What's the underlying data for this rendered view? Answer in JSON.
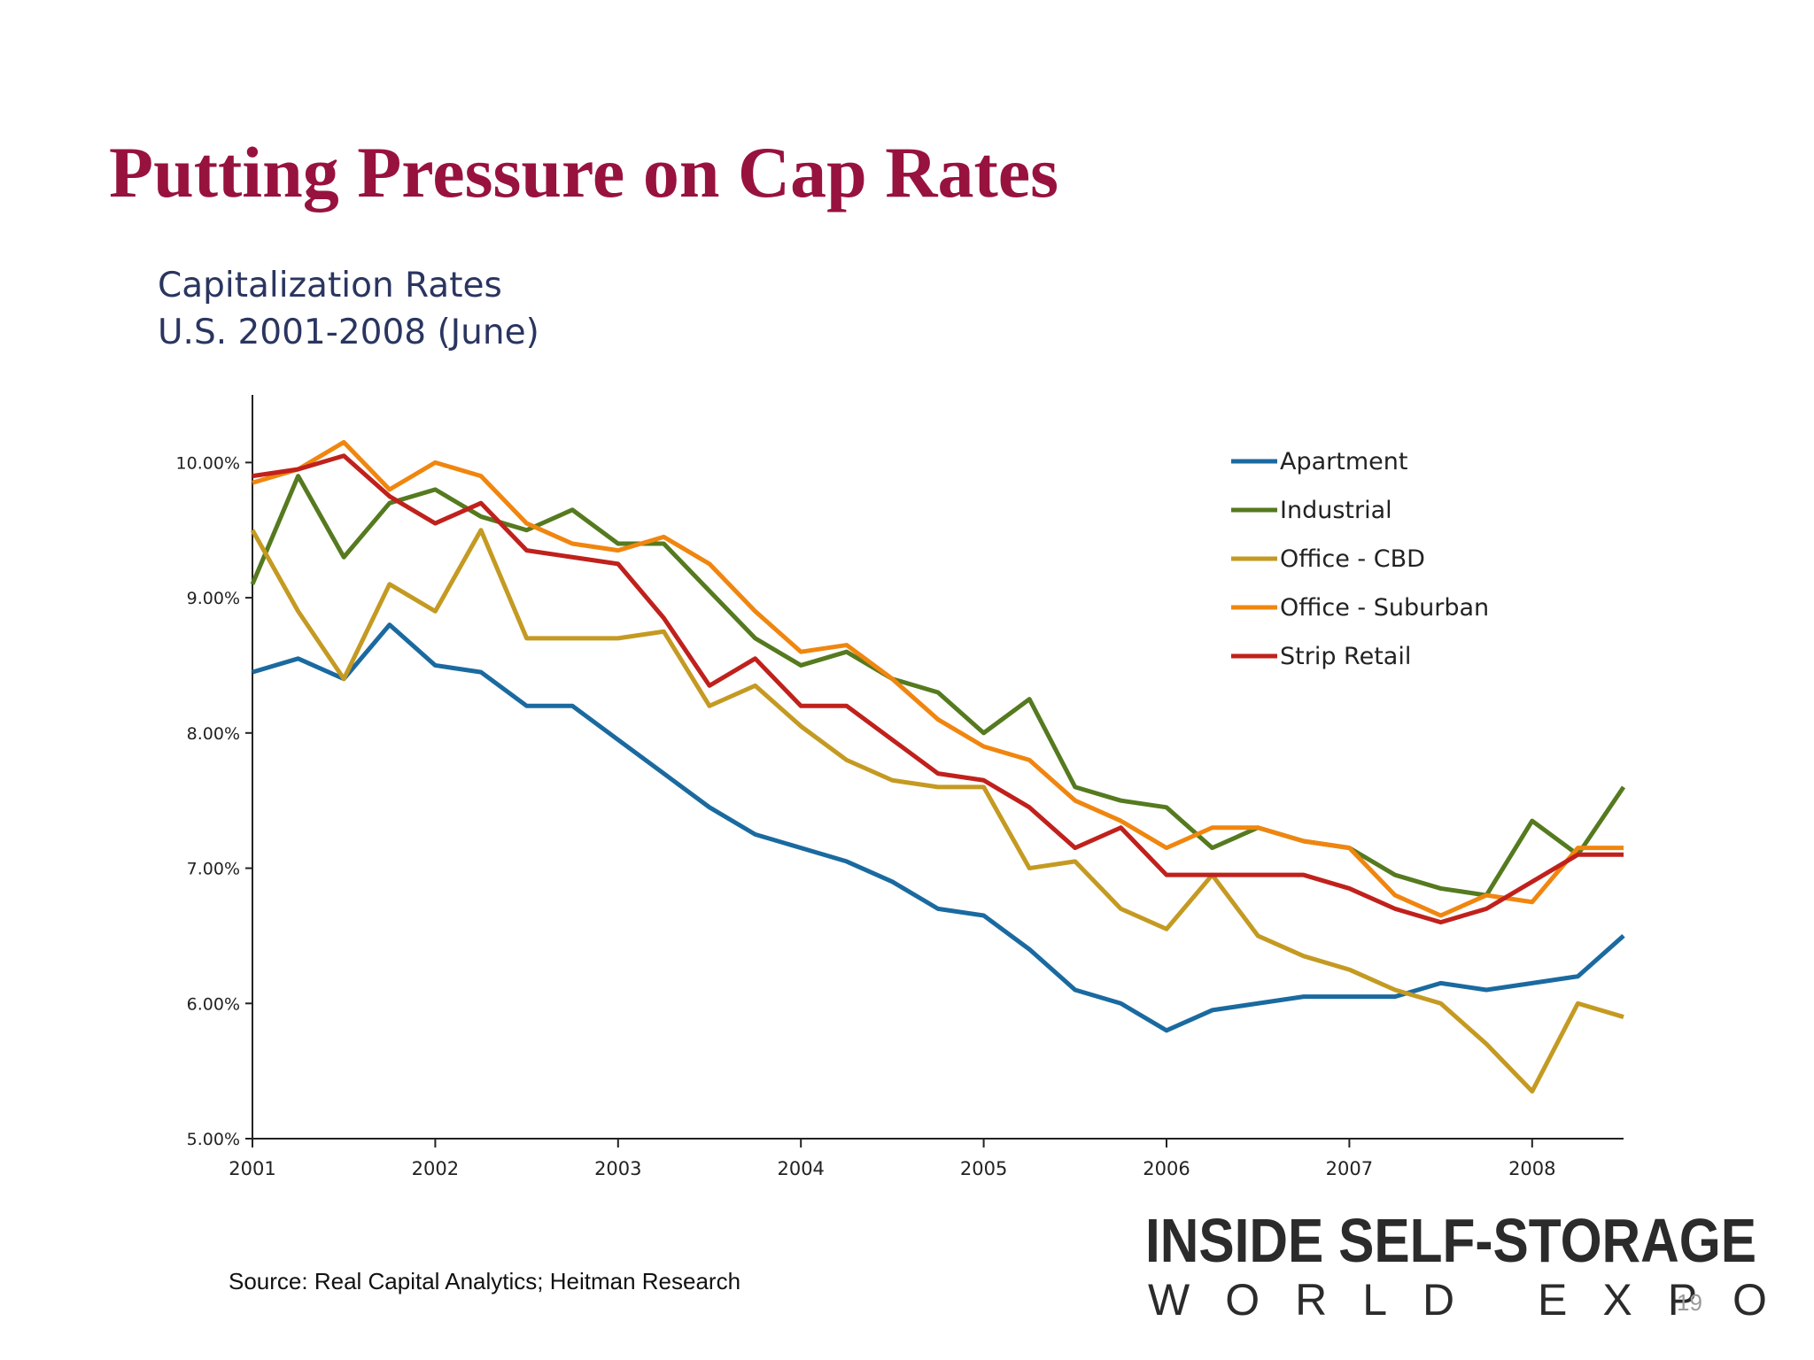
{
  "slide": {
    "title": "Putting Pressure on Cap Rates",
    "source": "Source: Real Capital Analytics; Heitman Research",
    "logo_top": "INSIDE SELF-STORAGE",
    "logo_bottom": "WORLD EXPO",
    "page_number": "19"
  },
  "chart_data": {
    "type": "line",
    "title": "Capitalization Rates",
    "subtitle": "U.S.  2001-2008 (June)",
    "x": [
      2001,
      2001.25,
      2001.5,
      2001.75,
      2002,
      2002.25,
      2002.5,
      2002.75,
      2003,
      2003.25,
      2003.5,
      2003.75,
      2004,
      2004.25,
      2004.5,
      2004.75,
      2005,
      2005.25,
      2005.5,
      2005.75,
      2006,
      2006.25,
      2006.5,
      2006.75,
      2007,
      2007.25,
      2007.5,
      2007.75,
      2008,
      2008.25,
      2008.5
    ],
    "series": [
      {
        "name": "Apartment",
        "color": "#1a6aa0",
        "values": [
          8.45,
          8.55,
          8.4,
          8.8,
          8.5,
          8.45,
          8.2,
          8.2,
          7.95,
          7.7,
          7.45,
          7.25,
          7.15,
          7.05,
          6.9,
          6.7,
          6.65,
          6.4,
          6.1,
          6.0,
          5.8,
          5.95,
          6.0,
          6.05,
          6.05,
          6.05,
          6.15,
          6.1,
          6.15,
          6.2,
          6.5
        ]
      },
      {
        "name": "Industrial",
        "color": "#557a1f",
        "values": [
          9.1,
          9.9,
          9.3,
          9.7,
          9.8,
          9.6,
          9.5,
          9.65,
          9.4,
          9.4,
          9.05,
          8.7,
          8.5,
          8.6,
          8.4,
          8.3,
          8.0,
          8.25,
          7.6,
          7.5,
          7.45,
          7.15,
          7.3,
          7.2,
          7.15,
          6.95,
          6.85,
          6.8,
          7.35,
          7.1,
          7.6
        ]
      },
      {
        "name": "Office - CBD",
        "color": "#c49a22",
        "values": [
          9.5,
          8.9,
          8.4,
          9.1,
          8.9,
          9.5,
          8.7,
          8.7,
          8.7,
          8.75,
          8.2,
          8.35,
          8.05,
          7.8,
          7.65,
          7.6,
          7.6,
          7.0,
          7.05,
          6.7,
          6.55,
          6.95,
          6.5,
          6.35,
          6.25,
          6.1,
          6.0,
          5.7,
          5.35,
          6.0,
          5.9
        ]
      },
      {
        "name": "Office - Suburban",
        "color": "#f0860f",
        "values": [
          9.85,
          9.95,
          10.15,
          9.8,
          10.0,
          9.9,
          9.55,
          9.4,
          9.35,
          9.45,
          9.25,
          8.9,
          8.6,
          8.65,
          8.4,
          8.1,
          7.9,
          7.8,
          7.5,
          7.35,
          7.15,
          7.3,
          7.3,
          7.2,
          7.15,
          6.8,
          6.65,
          6.8,
          6.75,
          7.15,
          7.15
        ]
      },
      {
        "name": "Strip Retail",
        "color": "#c0211c",
        "values": [
          9.9,
          9.95,
          10.05,
          9.75,
          9.55,
          9.7,
          9.35,
          9.3,
          9.25,
          8.85,
          8.35,
          8.55,
          8.2,
          8.2,
          7.95,
          7.7,
          7.65,
          7.45,
          7.15,
          7.3,
          6.95,
          6.95,
          6.95,
          6.95,
          6.85,
          6.7,
          6.6,
          6.7,
          6.9,
          7.1,
          7.1
        ]
      }
    ],
    "xlim": [
      2001,
      2008.5
    ],
    "xticks": [
      2001,
      2002,
      2003,
      2004,
      2005,
      2006,
      2007,
      2008
    ],
    "ylim": [
      5,
      10.5
    ],
    "yticks": [
      {
        "value": 5,
        "label": "5.00%"
      },
      {
        "value": 6,
        "label": "6.00%"
      },
      {
        "value": 7,
        "label": "7.00%"
      },
      {
        "value": 8,
        "label": "8.00%"
      },
      {
        "value": 9,
        "label": "9.00%"
      },
      {
        "value": 10,
        "label": "10.00%"
      }
    ],
    "legend": "upper right"
  }
}
